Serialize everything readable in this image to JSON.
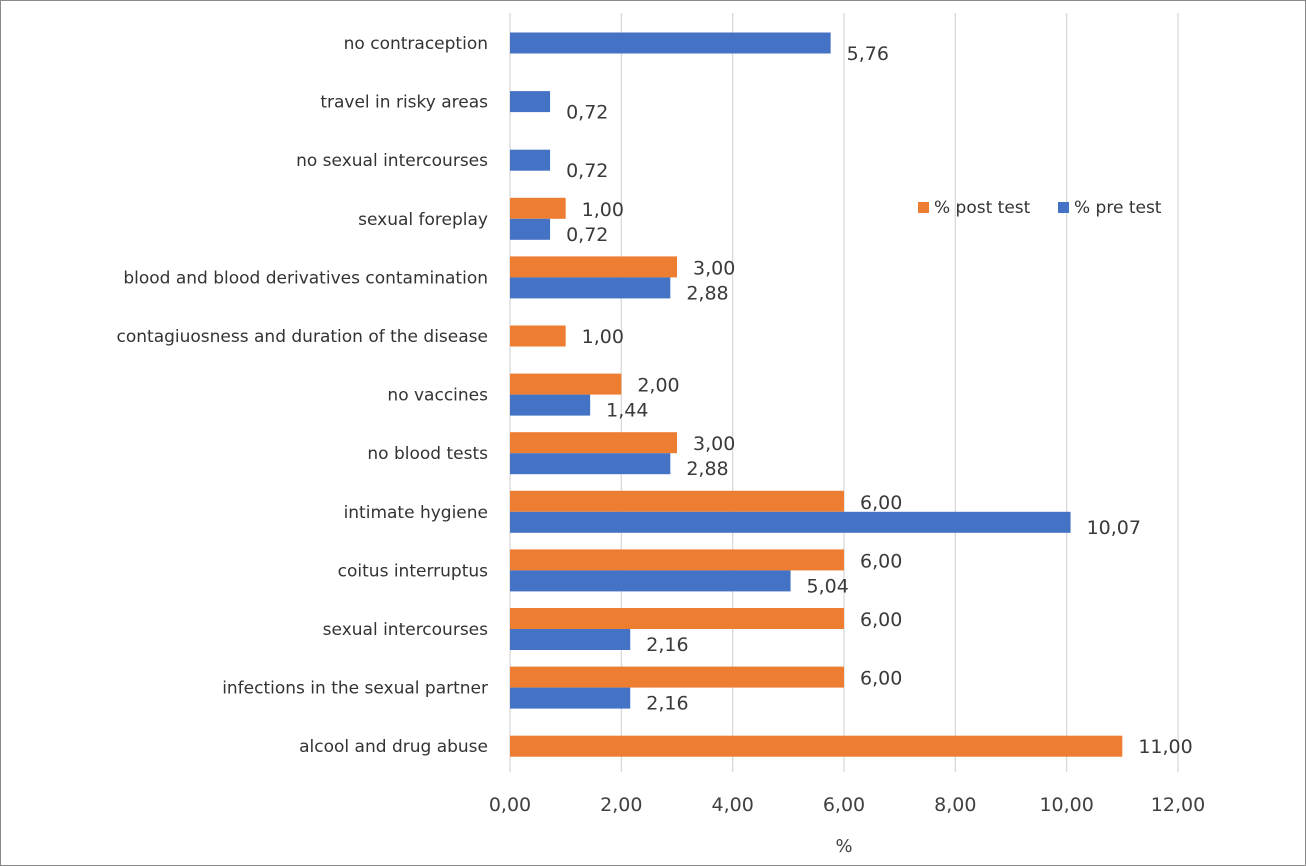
{
  "chart_data": {
    "type": "bar",
    "orientation": "horizontal",
    "title": "",
    "xlabel": "%",
    "ylabel": "",
    "xlim": [
      0,
      12
    ],
    "x_ticks": [
      0,
      2,
      4,
      6,
      8,
      10,
      12
    ],
    "x_tick_labels": [
      "0,00",
      "2,00",
      "4,00",
      "6,00",
      "8,00",
      "10,00",
      "12,00"
    ],
    "grid": "vertical",
    "legend_position": "right",
    "categories": [
      "no contraception",
      "travel in risky areas",
      "no sexual intercourses",
      "sexual foreplay",
      "blood and blood derivatives contamination",
      "contagiuosness and duration of the disease",
      "no vaccines",
      "no blood tests",
      "intimate hygiene",
      "coitus interruptus",
      "sexual intercourses",
      "infections in the sexual partner",
      "alcool and drug abuse"
    ],
    "series": [
      {
        "name": "% post test",
        "color": "#ED7D31",
        "values": [
          null,
          null,
          null,
          1.0,
          3.0,
          1.0,
          2.0,
          3.0,
          6.0,
          6.0,
          6.0,
          6.0,
          11.0
        ],
        "labels": [
          "",
          "",
          "",
          "1,00",
          "3,00",
          "1,00",
          "2,00",
          "3,00",
          "6,00",
          "6,00",
          "6,00",
          "6,00",
          "11,00"
        ]
      },
      {
        "name": "% pre test",
        "color": "#4472C4",
        "values": [
          5.76,
          0.72,
          0.72,
          0.72,
          2.88,
          null,
          1.44,
          2.88,
          10.07,
          5.04,
          2.16,
          2.16,
          null
        ],
        "labels": [
          "5,76",
          "0,72",
          "0,72",
          "0,72",
          "2,88",
          "",
          "1,44",
          "2,88",
          "10,07",
          "5,04",
          "2,16",
          "2,16",
          ""
        ]
      }
    ]
  }
}
